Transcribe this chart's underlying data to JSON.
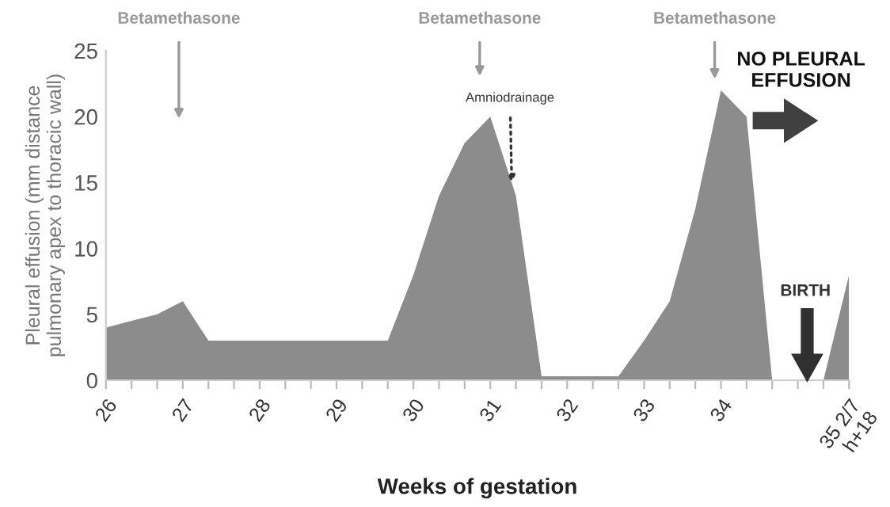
{
  "chart_data": {
    "type": "area",
    "xlabel": "Weeks of gestation",
    "ylabel": "Pleural effusion (mm distance\npulmonary apex to thoracic wall)",
    "categories": [
      "26",
      null,
      null,
      "27",
      null,
      null,
      "28",
      null,
      null,
      "29",
      null,
      null,
      "30",
      null,
      null,
      "31",
      null,
      null,
      "32",
      null,
      null,
      "33",
      null,
      null,
      "34",
      null,
      null,
      null,
      null,
      "35 2/7\nh+18"
    ],
    "series": [
      {
        "color": "#8c8c8c",
        "values": [
          4,
          4.5,
          5,
          6,
          3,
          3,
          3,
          3,
          3,
          3,
          3,
          3,
          8,
          14,
          18,
          20,
          14,
          0.3,
          0.3,
          0.3,
          0.3,
          3,
          6,
          13,
          22,
          20,
          0,
          0,
          0,
          8
        ]
      }
    ],
    "ylim": [
      0,
      25
    ],
    "yticks": [
      0,
      5,
      10,
      15,
      20,
      25
    ],
    "grid": false,
    "legend": false,
    "annotations": [
      "Betamethasone",
      "Betamethasone",
      "Betamethasone",
      {
        "text": "Amniodrainage",
        "y": 15
      },
      "NO PLEURAL EFFUSION",
      "BIRTH"
    ]
  }
}
